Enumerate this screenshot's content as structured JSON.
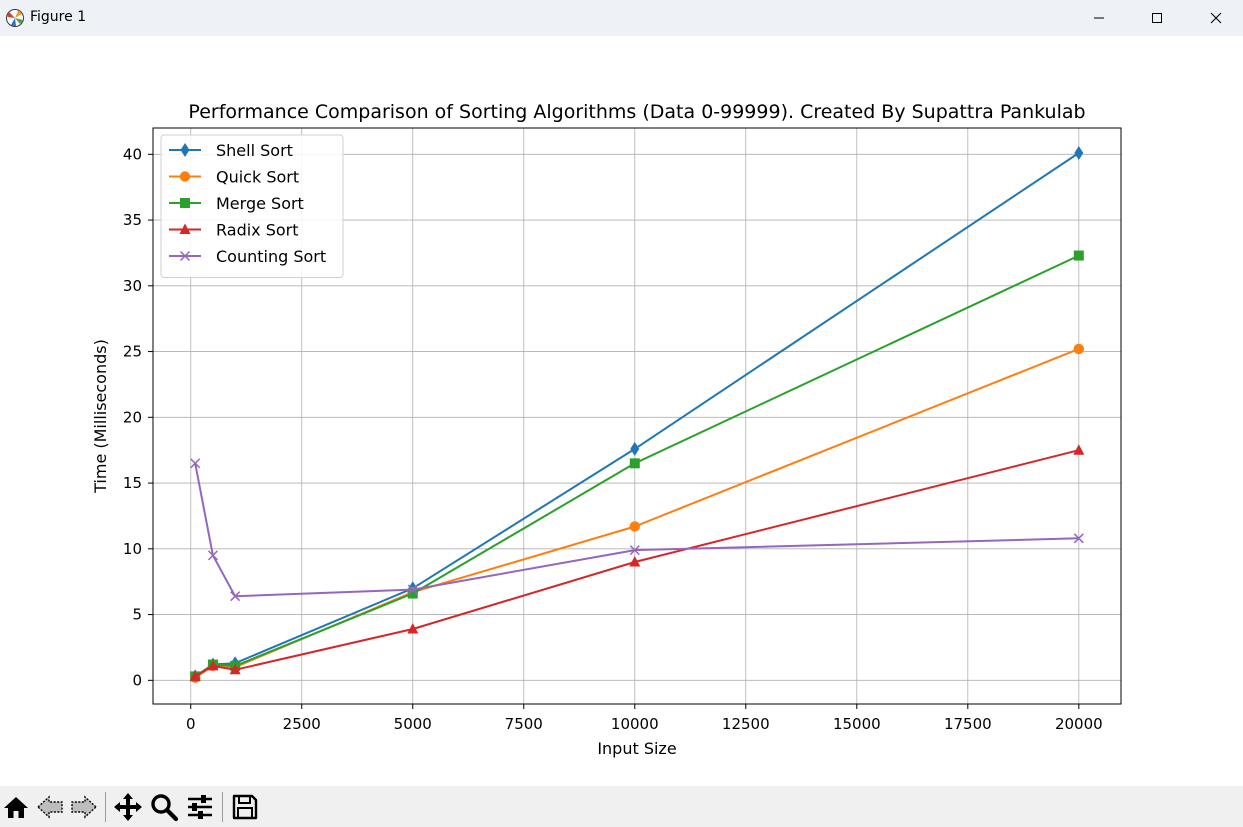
{
  "window": {
    "title": "Figure 1",
    "icons": {
      "app": "matplotlib-icon",
      "minimize": "minimize-icon",
      "maximize": "maximize-icon",
      "close": "close-icon"
    }
  },
  "toolbar": {
    "buttons": [
      {
        "name": "home-icon"
      },
      {
        "name": "back-icon"
      },
      {
        "name": "forward-icon"
      },
      {
        "name": "pan-icon"
      },
      {
        "name": "zoom-icon"
      },
      {
        "name": "configure-subplots-icon"
      },
      {
        "name": "save-icon"
      }
    ]
  },
  "chart_data": {
    "type": "line",
    "title": "Performance Comparison of Sorting Algorithms (Data 0-99999). Created By Supattra Pankulab",
    "xlabel": "Input Size",
    "ylabel": "Time (Milliseconds)",
    "xlim": [
      -850,
      20950
    ],
    "ylim": [
      -1.8,
      42.0
    ],
    "xticks": [
      0,
      2500,
      5000,
      7500,
      10000,
      12500,
      15000,
      17500,
      20000
    ],
    "yticks": [
      0,
      5,
      10,
      15,
      20,
      25,
      30,
      35,
      40
    ],
    "grid": true,
    "legend_position": "upper-left",
    "x": [
      100,
      500,
      1000,
      5000,
      10000,
      20000
    ],
    "series": [
      {
        "name": "Shell Sort",
        "color": "#1f77b4",
        "marker": "thin_diamond",
        "values": [
          0.3,
          1.2,
          1.3,
          7.0,
          17.6,
          40.1
        ]
      },
      {
        "name": "Quick Sort",
        "color": "#ff7f0e",
        "marker": "circle",
        "values": [
          0.2,
          1.1,
          1.0,
          6.7,
          11.7,
          25.2
        ]
      },
      {
        "name": "Merge Sort",
        "color": "#2ca02c",
        "marker": "square",
        "values": [
          0.3,
          1.2,
          1.1,
          6.6,
          16.5,
          32.3
        ]
      },
      {
        "name": "Radix Sort",
        "color": "#d62728",
        "marker": "triangle",
        "values": [
          0.3,
          1.1,
          0.8,
          3.9,
          9.0,
          17.5
        ]
      },
      {
        "name": "Counting Sort",
        "color": "#9467bd",
        "marker": "x",
        "values": [
          16.5,
          9.5,
          6.4,
          6.9,
          9.9,
          10.8
        ]
      }
    ]
  }
}
